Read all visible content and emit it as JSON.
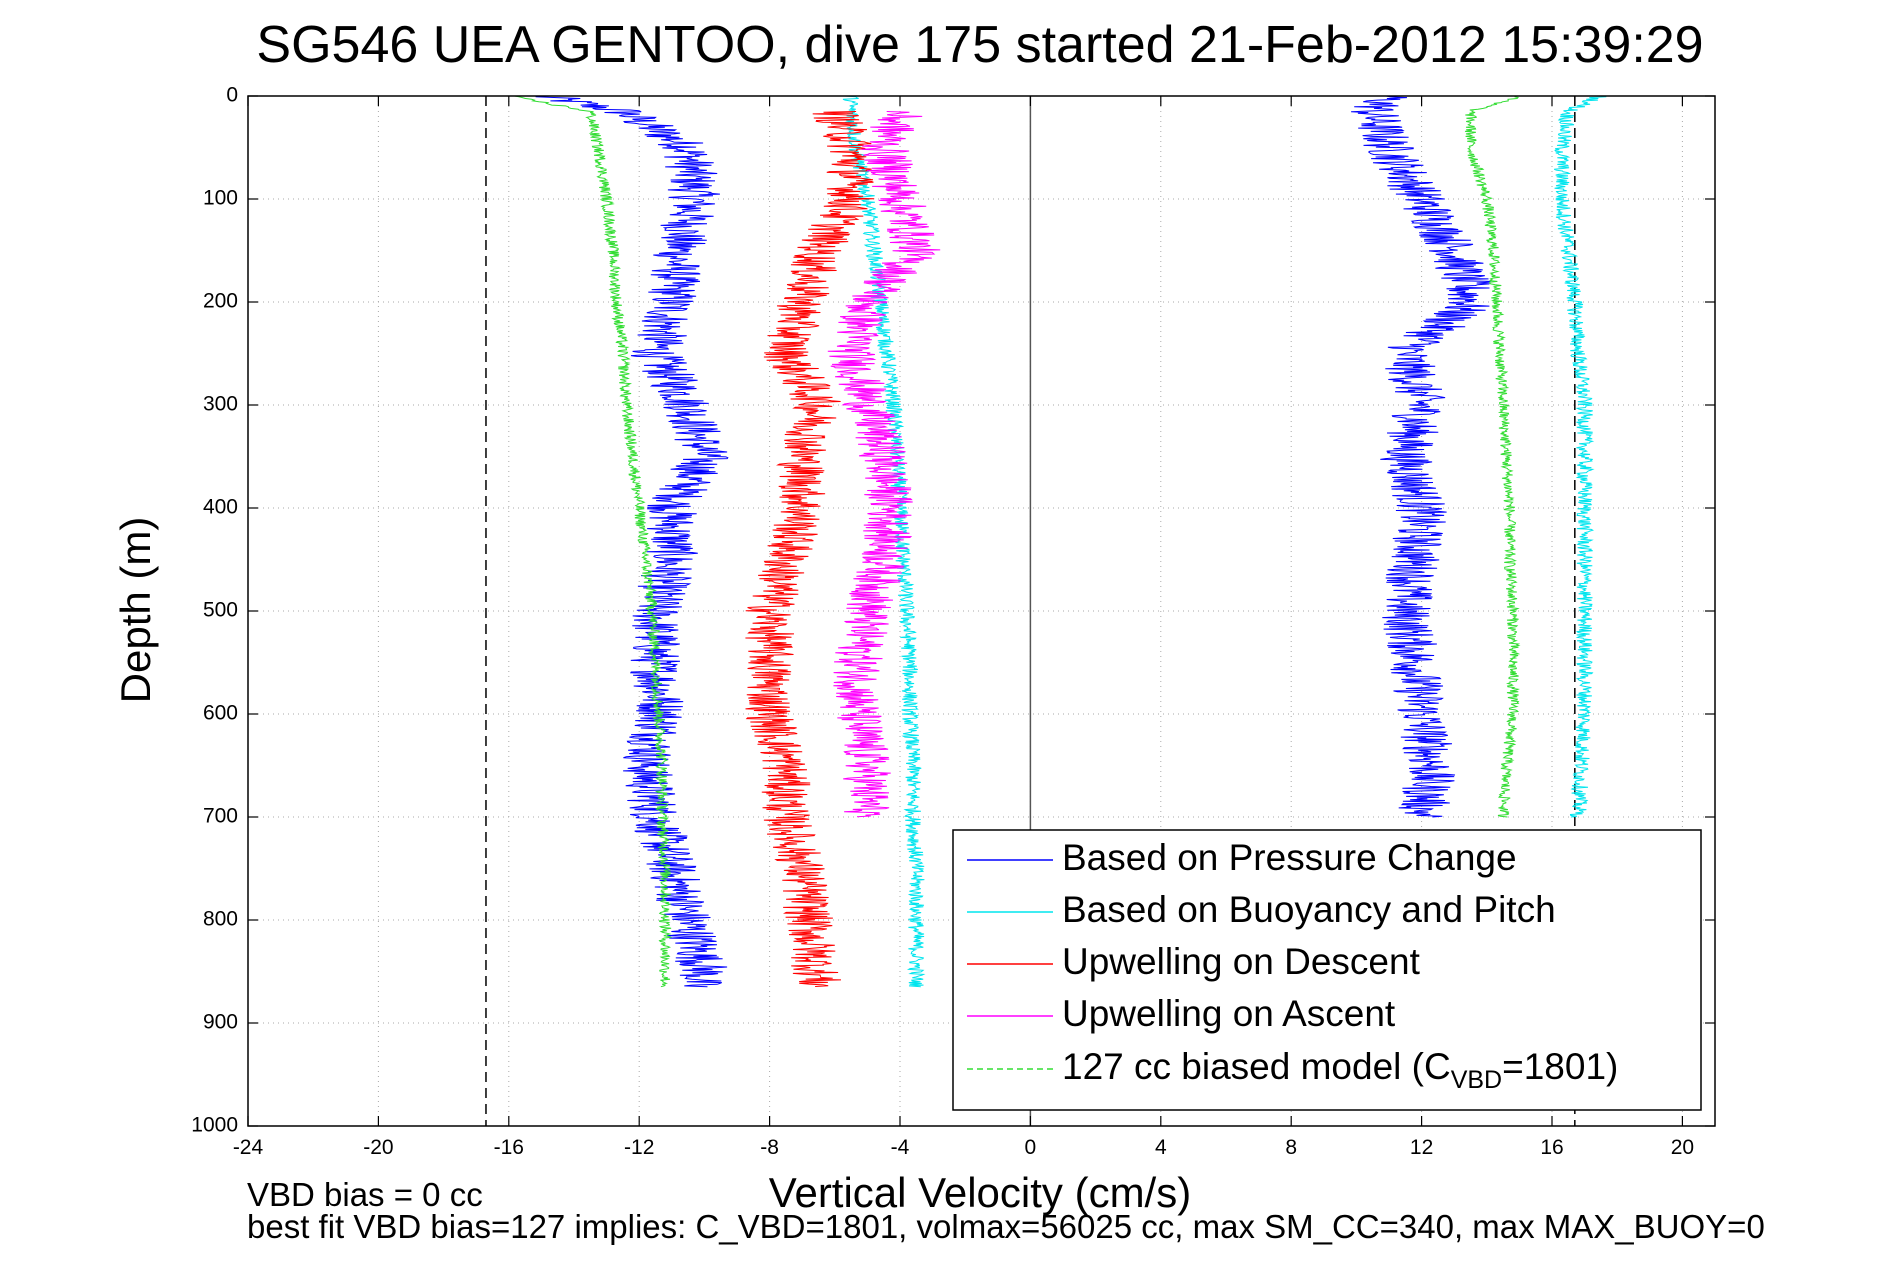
{
  "chart_data": {
    "type": "line",
    "title": "SG546 UEA GENTOO, dive 175 started 21-Feb-2012 15:39:29",
    "xlabel": "Vertical Velocity (cm/s)",
    "ylabel": "Depth (m)",
    "xlim": [
      -24,
      21
    ],
    "ylim": [
      0,
      1000
    ],
    "y_reversed": true,
    "grid": "dotted",
    "legend_position": "bottom-right",
    "xticks": [
      -24,
      -20,
      -16,
      -12,
      -8,
      -4,
      0,
      4,
      8,
      12,
      16,
      20
    ],
    "xtick_labels": [
      "-24",
      "-20",
      "-16",
      "-12",
      "-8",
      "-4",
      "0",
      "4",
      "8",
      "12",
      "16",
      "20"
    ],
    "yticks": [
      0,
      100,
      200,
      300,
      400,
      500,
      600,
      700,
      800,
      900,
      1000
    ],
    "ytick_labels": [
      "0",
      "100",
      "200",
      "300",
      "400",
      "500",
      "600",
      "700",
      "800",
      "900",
      "1000"
    ],
    "reference_lines": [
      {
        "x": 0,
        "style": "solid",
        "color": "#555555"
      },
      {
        "x": -16.7,
        "style": "dashed",
        "color": "#000000"
      },
      {
        "x": 16.7,
        "style": "dashed",
        "color": "#000000"
      }
    ],
    "series": [
      {
        "name": "Based on Pressure Change",
        "color": "#0000ff",
        "noise": 0.8,
        "profiles": [
          {
            "depth": [
              0,
              15,
              50,
              100,
              150,
              200,
              250,
              300,
              350,
              400,
              450,
              500,
              550,
              600,
              650,
              700,
              750,
              800,
              850,
              865
            ],
            "value": [
              -15,
              -12.5,
              -10.5,
              -10.3,
              -10.8,
              -11,
              -11.5,
              -10.5,
              -10,
              -11,
              -11,
              -11.5,
              -11.5,
              -11.3,
              -11.8,
              -11.5,
              -11,
              -10.5,
              -10,
              -10.3
            ]
          },
          {
            "depth": [
              0,
              15,
              50,
              100,
              150,
              200,
              250,
              300,
              350,
              400,
              450,
              500,
              550,
              600,
              650,
              700
            ],
            "value": [
              11,
              10.5,
              11,
              12,
              13,
              13.5,
              11.5,
              12,
              11.5,
              12,
              11.8,
              11.5,
              11.8,
              12,
              12.3,
              12
            ]
          }
        ]
      },
      {
        "name": "Based on Buoyancy and Pitch",
        "color": "#00e5ee",
        "noise": 0.25,
        "profiles": [
          {
            "depth": [
              0,
              15,
              60,
              100,
              150,
              200,
              250,
              300,
              350,
              400,
              450,
              500,
              550,
              600,
              650,
              700,
              750,
              800,
              865
            ],
            "value": [
              -5.5,
              -5.5,
              -5.3,
              -5,
              -4.8,
              -4.6,
              -4.4,
              -4.2,
              -4.1,
              -4,
              -3.9,
              -3.8,
              -3.7,
              -3.7,
              -3.6,
              -3.6,
              -3.5,
              -3.5,
              -3.5
            ]
          },
          {
            "depth": [
              0,
              15,
              50,
              100,
              150,
              200,
              250,
              300,
              350,
              400,
              450,
              500,
              550,
              600,
              650,
              700
            ],
            "value": [
              17.5,
              16.5,
              16.3,
              16.3,
              16.5,
              16.7,
              16.8,
              17,
              17,
              17,
              17,
              17,
              17,
              17,
              16.9,
              16.8
            ]
          }
        ]
      },
      {
        "name": "Upwelling on Descent",
        "color": "#ff0000",
        "noise": 0.75,
        "profiles": [
          {
            "depth": [
              15,
              50,
              100,
              150,
              200,
              250,
              300,
              350,
              400,
              450,
              500,
              550,
              600,
              650,
              700,
              750,
              800,
              865
            ],
            "value": [
              -6,
              -5.5,
              -5.5,
              -6.5,
              -7,
              -7.5,
              -6.5,
              -7,
              -7,
              -7.5,
              -8,
              -8,
              -8,
              -7.5,
              -7.5,
              -7,
              -6.8,
              -6.5
            ]
          }
        ]
      },
      {
        "name": "Upwelling on Ascent",
        "color": "#ff00ff",
        "noise": 0.75,
        "profiles": [
          {
            "depth": [
              15,
              50,
              100,
              150,
              200,
              250,
              300,
              350,
              400,
              450,
              500,
              550,
              600,
              650,
              700
            ],
            "value": [
              -4,
              -4.5,
              -4,
              -3.5,
              -5,
              -5.5,
              -5,
              -4.5,
              -4.3,
              -4.5,
              -5,
              -5.3,
              -5.3,
              -5,
              -5
            ]
          }
        ]
      },
      {
        "name": "127 cc biased model (C_VBD=1801)",
        "color": "#33dd33",
        "noise": 0.18,
        "profiles": [
          {
            "depth": [
              0,
              15,
              60,
              100,
              150,
              200,
              250,
              300,
              350,
              400,
              450,
              500,
              550,
              600,
              650,
              700,
              750,
              800,
              865
            ],
            "value": [
              -16,
              -13.5,
              -13.2,
              -13,
              -12.8,
              -12.7,
              -12.5,
              -12.4,
              -12.2,
              -12,
              -11.8,
              -11.6,
              -11.5,
              -11.4,
              -11.3,
              -11.3,
              -11.2,
              -11.2,
              -11.2
            ]
          },
          {
            "depth": [
              0,
              15,
              50,
              100,
              150,
              200,
              250,
              300,
              350,
              400,
              450,
              500,
              550,
              600,
              650,
              700
            ],
            "value": [
              15,
              13.5,
              13.5,
              14,
              14.2,
              14.3,
              14.4,
              14.5,
              14.6,
              14.7,
              14.7,
              14.8,
              14.8,
              14.8,
              14.6,
              14.5
            ]
          }
        ]
      }
    ]
  },
  "legend": {
    "items": [
      {
        "label": "Based on Pressure Change",
        "color": "#0000ff",
        "dashed": false
      },
      {
        "label": "Based on Buoyancy and Pitch",
        "color": "#00e5ee",
        "dashed": false
      },
      {
        "label": "Upwelling on Descent",
        "color": "#ff0000",
        "dashed": false
      },
      {
        "label": "Upwelling on Ascent",
        "color": "#ff00ff",
        "dashed": false
      }
    ],
    "model_label_prefix": "127 cc biased model (C",
    "model_label_sub": "VBD",
    "model_label_suffix": "=1801)",
    "model_color": "#33dd33"
  },
  "annotations": {
    "bias_line": "VBD bias = 0 cc",
    "fit_line": "best fit VBD bias=127 implies: C_VBD=1801, volmax=56025 cc, max SM_CC=340, max MAX_BUOY=0"
  }
}
